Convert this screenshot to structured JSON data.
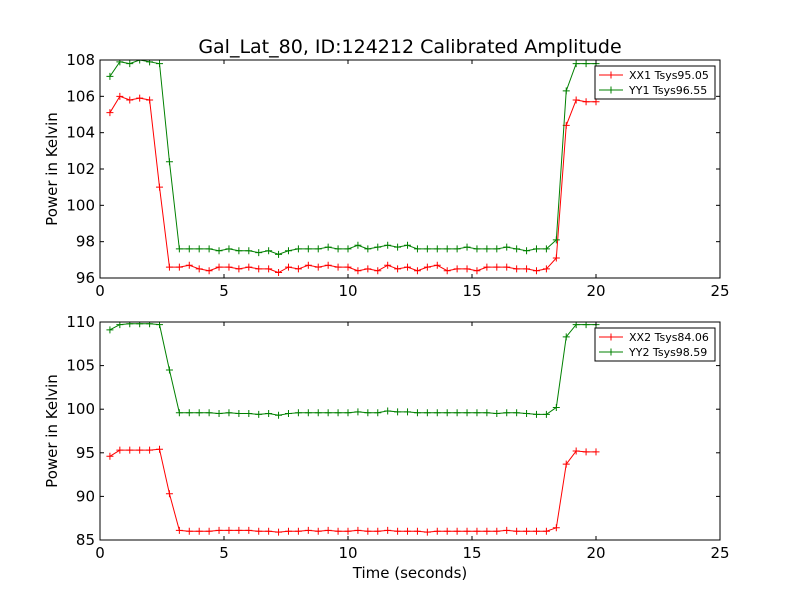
{
  "figure": {
    "title": "Gal_Lat_80, ID:124212 Calibrated Amplitude"
  },
  "chart_data": [
    {
      "type": "line",
      "title": "Gal_Lat_80, ID:124212 Calibrated Amplitude",
      "xlabel": "",
      "ylabel": "Power in Kelvin",
      "xlim": [
        0,
        25
      ],
      "ylim": [
        96,
        108
      ],
      "xticks": [
        0,
        5,
        10,
        15,
        20,
        25
      ],
      "yticks": [
        96,
        98,
        100,
        102,
        104,
        106,
        108
      ],
      "grid": false,
      "legend": "top-right",
      "x": [
        0.4,
        0.8,
        1.2,
        1.6,
        2.0,
        2.4,
        2.8,
        3.2,
        3.6,
        4.0,
        4.4,
        4.8,
        5.2,
        5.6,
        6.0,
        6.4,
        6.8,
        7.2,
        7.6,
        8.0,
        8.4,
        8.8,
        9.2,
        9.6,
        10.0,
        10.4,
        10.8,
        11.2,
        11.6,
        12.0,
        12.4,
        12.8,
        13.2,
        13.6,
        14.0,
        14.4,
        14.8,
        15.2,
        15.6,
        16.0,
        16.4,
        16.8,
        17.2,
        17.6,
        18.0,
        18.4,
        18.8,
        19.2,
        19.6,
        20.0
      ],
      "series": [
        {
          "name": "XX1 Tsys95.05",
          "color": "#ff0000",
          "values": [
            105.1,
            106.0,
            105.8,
            105.9,
            105.8,
            101.0,
            96.6,
            96.6,
            96.7,
            96.5,
            96.4,
            96.6,
            96.6,
            96.5,
            96.6,
            96.5,
            96.5,
            96.3,
            96.6,
            96.5,
            96.7,
            96.6,
            96.7,
            96.6,
            96.6,
            96.4,
            96.5,
            96.4,
            96.7,
            96.5,
            96.6,
            96.4,
            96.6,
            96.7,
            96.4,
            96.5,
            96.5,
            96.4,
            96.6,
            96.6,
            96.6,
            96.5,
            96.5,
            96.4,
            96.5,
            97.1,
            104.4,
            105.8,
            105.7,
            105.7
          ]
        },
        {
          "name": "YY1 Tsys96.55",
          "color": "#008000",
          "values": [
            107.1,
            107.9,
            107.8,
            108.0,
            107.9,
            107.8,
            102.4,
            97.6,
            97.6,
            97.6,
            97.6,
            97.5,
            97.6,
            97.5,
            97.5,
            97.4,
            97.5,
            97.3,
            97.5,
            97.6,
            97.6,
            97.6,
            97.7,
            97.6,
            97.6,
            97.8,
            97.6,
            97.7,
            97.8,
            97.7,
            97.8,
            97.6,
            97.6,
            97.6,
            97.6,
            97.6,
            97.7,
            97.6,
            97.6,
            97.6,
            97.7,
            97.6,
            97.5,
            97.6,
            97.6,
            98.1,
            106.3,
            107.8,
            107.8,
            107.8
          ]
        }
      ]
    },
    {
      "type": "line",
      "title": "",
      "xlabel": "Time (seconds)",
      "ylabel": "Power in Kelvin",
      "xlim": [
        0,
        25
      ],
      "ylim": [
        85,
        110
      ],
      "xticks": [
        0,
        5,
        10,
        15,
        20,
        25
      ],
      "yticks": [
        85,
        90,
        95,
        100,
        105,
        110
      ],
      "grid": false,
      "legend": "top-right",
      "x": [
        0.4,
        0.8,
        1.2,
        1.6,
        2.0,
        2.4,
        2.8,
        3.2,
        3.6,
        4.0,
        4.4,
        4.8,
        5.2,
        5.6,
        6.0,
        6.4,
        6.8,
        7.2,
        7.6,
        8.0,
        8.4,
        8.8,
        9.2,
        9.6,
        10.0,
        10.4,
        10.8,
        11.2,
        11.6,
        12.0,
        12.4,
        12.8,
        13.2,
        13.6,
        14.0,
        14.4,
        14.8,
        15.2,
        15.6,
        16.0,
        16.4,
        16.8,
        17.2,
        17.6,
        18.0,
        18.4,
        18.8,
        19.2,
        19.6,
        20.0
      ],
      "series": [
        {
          "name": "XX2 Tsys84.06",
          "color": "#ff0000",
          "values": [
            94.6,
            95.3,
            95.3,
            95.3,
            95.3,
            95.4,
            90.3,
            86.1,
            86.0,
            86.0,
            86.0,
            86.1,
            86.1,
            86.1,
            86.1,
            86.0,
            86.0,
            85.9,
            86.0,
            86.0,
            86.1,
            86.0,
            86.1,
            86.0,
            86.0,
            86.1,
            86.0,
            86.0,
            86.1,
            86.0,
            86.0,
            86.0,
            85.9,
            86.0,
            86.0,
            86.0,
            86.0,
            86.0,
            86.0,
            86.0,
            86.1,
            86.0,
            86.0,
            86.0,
            86.0,
            86.4,
            93.7,
            95.2,
            95.1,
            95.1
          ]
        },
        {
          "name": "YY2 Tsys98.59",
          "color": "#008000",
          "values": [
            109.1,
            109.7,
            109.8,
            109.8,
            109.8,
            109.7,
            104.5,
            99.6,
            99.6,
            99.6,
            99.6,
            99.5,
            99.6,
            99.5,
            99.5,
            99.4,
            99.5,
            99.3,
            99.5,
            99.6,
            99.6,
            99.6,
            99.6,
            99.6,
            99.6,
            99.7,
            99.6,
            99.6,
            99.8,
            99.7,
            99.7,
            99.6,
            99.6,
            99.6,
            99.6,
            99.6,
            99.6,
            99.6,
            99.6,
            99.5,
            99.6,
            99.6,
            99.5,
            99.4,
            99.4,
            100.2,
            108.3,
            109.7,
            109.7,
            109.7
          ]
        }
      ]
    }
  ]
}
